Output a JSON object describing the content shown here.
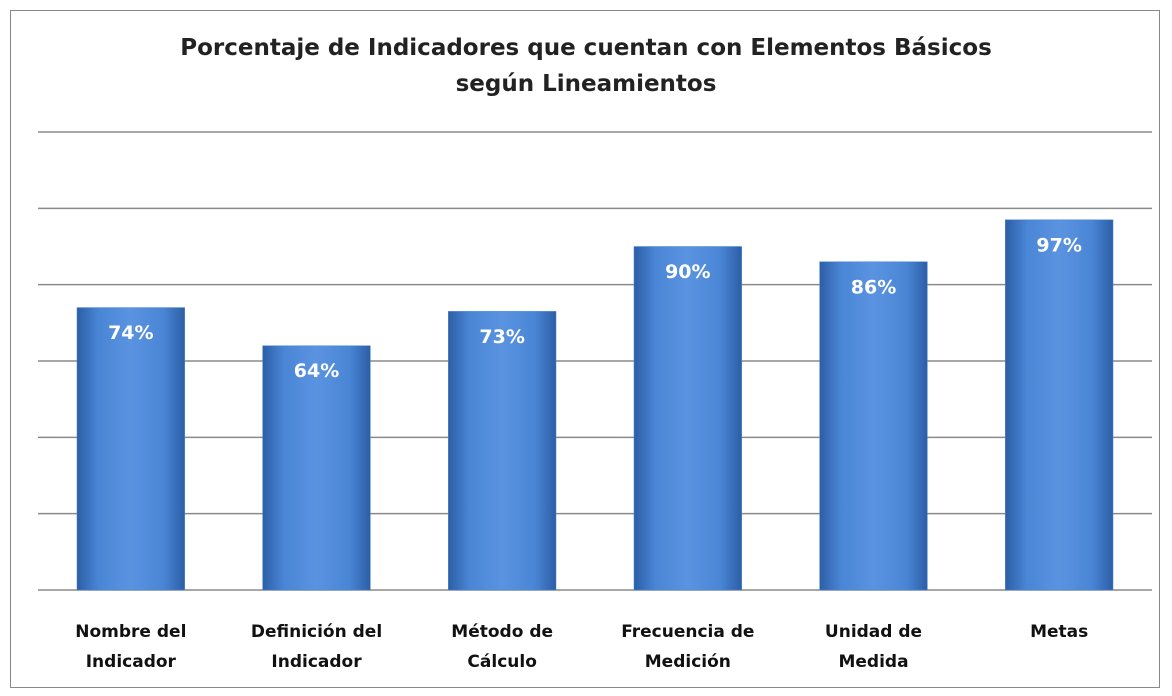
{
  "chart_data": {
    "type": "bar",
    "title": "Porcentaje de Indicadores que cuentan con Elementos Básicos\nsegún Lineamientos",
    "categories": [
      "Nombre del\nIndicador",
      "Definición del\nIndicador",
      "Método de\nCálculo",
      "Frecuencia de\nMedición",
      "Unidad de\nMedida",
      "Metas"
    ],
    "values": [
      74,
      64,
      73,
      90,
      86,
      97
    ],
    "value_labels": [
      "74%",
      "64%",
      "73%",
      "90%",
      "86%",
      "97%"
    ],
    "color": "#4a86d6",
    "ylim": [
      0,
      120
    ],
    "yticks": [
      0,
      20,
      40,
      60,
      80,
      100,
      120
    ],
    "grid": true
  }
}
